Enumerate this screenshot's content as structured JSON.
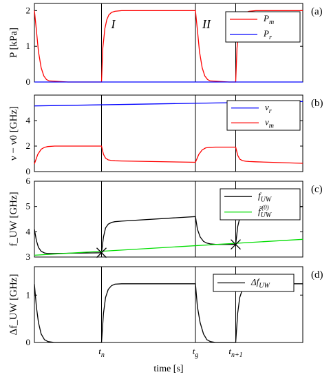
{
  "chart_data": [
    {
      "type": "line",
      "panel_label": "(a)",
      "ylabel": "P [kPa]",
      "ylim": [
        0,
        2.2
      ],
      "yticks": [
        0,
        1,
        2
      ],
      "ytick_labels": [
        "0",
        "1",
        "2"
      ],
      "legend_position": "top-right",
      "region_labels": [
        "I",
        "II"
      ],
      "series": [
        {
          "name": "P_m",
          "legend_main": "P",
          "legend_sub": "m",
          "color": "#ff0000",
          "x": [
            0.0,
            0.03,
            0.06,
            0.1,
            0.14,
            0.18,
            0.22,
            0.5,
            0.96,
            1.0,
            1.02,
            1.05,
            1.08,
            1.11,
            1.15,
            1.2,
            1.3,
            2.4,
            2.4,
            2.43,
            2.46,
            2.5,
            2.54,
            2.58,
            2.62,
            2.9,
            3.0,
            3.02,
            3.05,
            3.08,
            3.11,
            3.15,
            3.2,
            3.3,
            4.0
          ],
          "y": [
            2.0,
            1.45,
            0.85,
            0.4,
            0.17,
            0.07,
            0.03,
            0.0,
            0.0,
            0.0,
            0.95,
            1.5,
            1.75,
            1.88,
            1.95,
            1.98,
            2.0,
            2.0,
            2.0,
            1.45,
            0.85,
            0.4,
            0.17,
            0.07,
            0.03,
            0.0,
            0.0,
            0.95,
            1.5,
            1.75,
            1.88,
            1.95,
            1.98,
            2.0,
            2.0
          ]
        },
        {
          "name": "P_r",
          "legend_main": "P",
          "legend_sub": "r",
          "color": "#0000ff",
          "x": [
            0.0,
            4.0
          ],
          "y": [
            0.0,
            0.0
          ]
        }
      ]
    },
    {
      "type": "line",
      "panel_label": "(b)",
      "ylabel": "ν − ν0 [GHz]",
      "ylim": [
        0,
        6
      ],
      "yticks": [
        0,
        2,
        4
      ],
      "ytick_labels": [
        "0",
        "2",
        "4"
      ],
      "legend_position": "top-right",
      "series": [
        {
          "name": "ν_r",
          "legend_main": "ν",
          "legend_sub": "r",
          "color": "#0000ff",
          "x": [
            0.0,
            4.0
          ],
          "y": [
            5.15,
            5.5
          ]
        },
        {
          "name": "ν_m",
          "legend_main": "ν",
          "legend_sub": "m",
          "color": "#ff0000",
          "x": [
            0.0,
            0.05,
            0.1,
            0.15,
            0.2,
            0.3,
            0.5,
            0.96,
            1.0,
            1.03,
            1.06,
            1.1,
            1.15,
            1.2,
            1.3,
            2.4,
            2.4,
            2.45,
            2.5,
            2.55,
            2.6,
            2.7,
            2.96,
            3.0,
            3.03,
            3.06,
            3.1,
            3.15,
            3.2,
            3.3,
            4.0
          ],
          "y": [
            0.6,
            1.35,
            1.75,
            1.9,
            1.96,
            2.0,
            2.0,
            2.0,
            2.0,
            1.35,
            1.05,
            0.92,
            0.87,
            0.85,
            0.83,
            0.73,
            0.73,
            1.35,
            1.7,
            1.85,
            1.9,
            1.92,
            1.92,
            1.92,
            1.28,
            0.98,
            0.86,
            0.81,
            0.79,
            0.77,
            0.65
          ]
        }
      ]
    },
    {
      "type": "line",
      "panel_label": "(c)",
      "ylabel": "f_UW [GHz]",
      "ylim": [
        3,
        6
      ],
      "yticks": [
        3,
        4,
        5,
        6
      ],
      "ytick_labels": [
        "3",
        "4",
        "5",
        "6"
      ],
      "legend_position": "top-right",
      "series": [
        {
          "name": "f_UW",
          "legend_main": "f",
          "legend_sub": "UW",
          "color": "#000000",
          "x": [
            0.0,
            0.03,
            0.06,
            0.1,
            0.15,
            0.2,
            0.3,
            0.5,
            1.0,
            1.0,
            1.03,
            1.06,
            1.1,
            1.15,
            1.2,
            1.3,
            2.4,
            2.4,
            2.43,
            2.47,
            2.52,
            2.57,
            2.62,
            2.7,
            3.0,
            3.0,
            3.03,
            3.06,
            3.1,
            3.15,
            3.2,
            3.3,
            4.0
          ],
          "y": [
            4.1,
            3.65,
            3.38,
            3.23,
            3.16,
            3.14,
            3.14,
            3.15,
            3.17,
            3.17,
            3.8,
            4.15,
            4.3,
            4.37,
            4.4,
            4.42,
            4.6,
            4.6,
            4.1,
            3.8,
            3.62,
            3.55,
            3.52,
            3.5,
            3.5,
            3.5,
            4.2,
            4.55,
            4.72,
            4.8,
            4.84,
            4.86,
            5.0
          ]
        },
        {
          "name": "f̃_UW^(0)",
          "legend_main": "f̃",
          "legend_sub": "UW",
          "legend_sup": "(0)",
          "color": "#00dd00",
          "x": [
            0.0,
            4.0
          ],
          "y": [
            3.07,
            3.7
          ]
        }
      ],
      "markers": [
        {
          "x": 1.0,
          "y": 3.17,
          "symbol": "×"
        },
        {
          "x": 3.0,
          "y": 3.5,
          "symbol": "×"
        }
      ]
    },
    {
      "type": "line",
      "panel_label": "(d)",
      "ylabel": "Δf_UW [GHz]",
      "ylim": [
        0,
        1.6
      ],
      "yticks": [
        0,
        1
      ],
      "ytick_labels": [
        "0",
        "1"
      ],
      "legend_position": "top-right",
      "xlabel": "time [s]",
      "xticks": [
        1.0,
        2.4,
        3.0
      ],
      "xtick_labels": [
        {
          "main": "t",
          "sub": "n"
        },
        {
          "main": "t",
          "sub": "g"
        },
        {
          "main": "t",
          "sub": "n+1"
        }
      ],
      "series": [
        {
          "name": "Δf_UW",
          "legend_main": "Δf",
          "legend_sub": "UW",
          "color": "#000000",
          "x": [
            0.0,
            0.03,
            0.06,
            0.1,
            0.15,
            0.2,
            0.3,
            0.96,
            1.0,
            1.0,
            1.03,
            1.06,
            1.1,
            1.15,
            1.2,
            1.3,
            2.4,
            2.4,
            2.43,
            2.47,
            2.52,
            2.57,
            2.62,
            2.7,
            3.0,
            3.0,
            3.03,
            3.06,
            3.1,
            3.15,
            3.2,
            3.3,
            4.0
          ],
          "y": [
            1.23,
            0.75,
            0.42,
            0.18,
            0.06,
            0.02,
            0.0,
            0.0,
            0.0,
            0.0,
            0.62,
            0.95,
            1.12,
            1.2,
            1.23,
            1.24,
            1.24,
            1.24,
            0.75,
            0.42,
            0.18,
            0.06,
            0.02,
            0.0,
            0.0,
            0.0,
            0.62,
            0.95,
            1.12,
            1.2,
            1.23,
            1.24,
            1.24
          ]
        }
      ]
    }
  ],
  "shared_x": {
    "xlim": [
      0,
      4
    ],
    "vertical_lines": [
      1.0,
      2.4,
      3.0
    ]
  }
}
